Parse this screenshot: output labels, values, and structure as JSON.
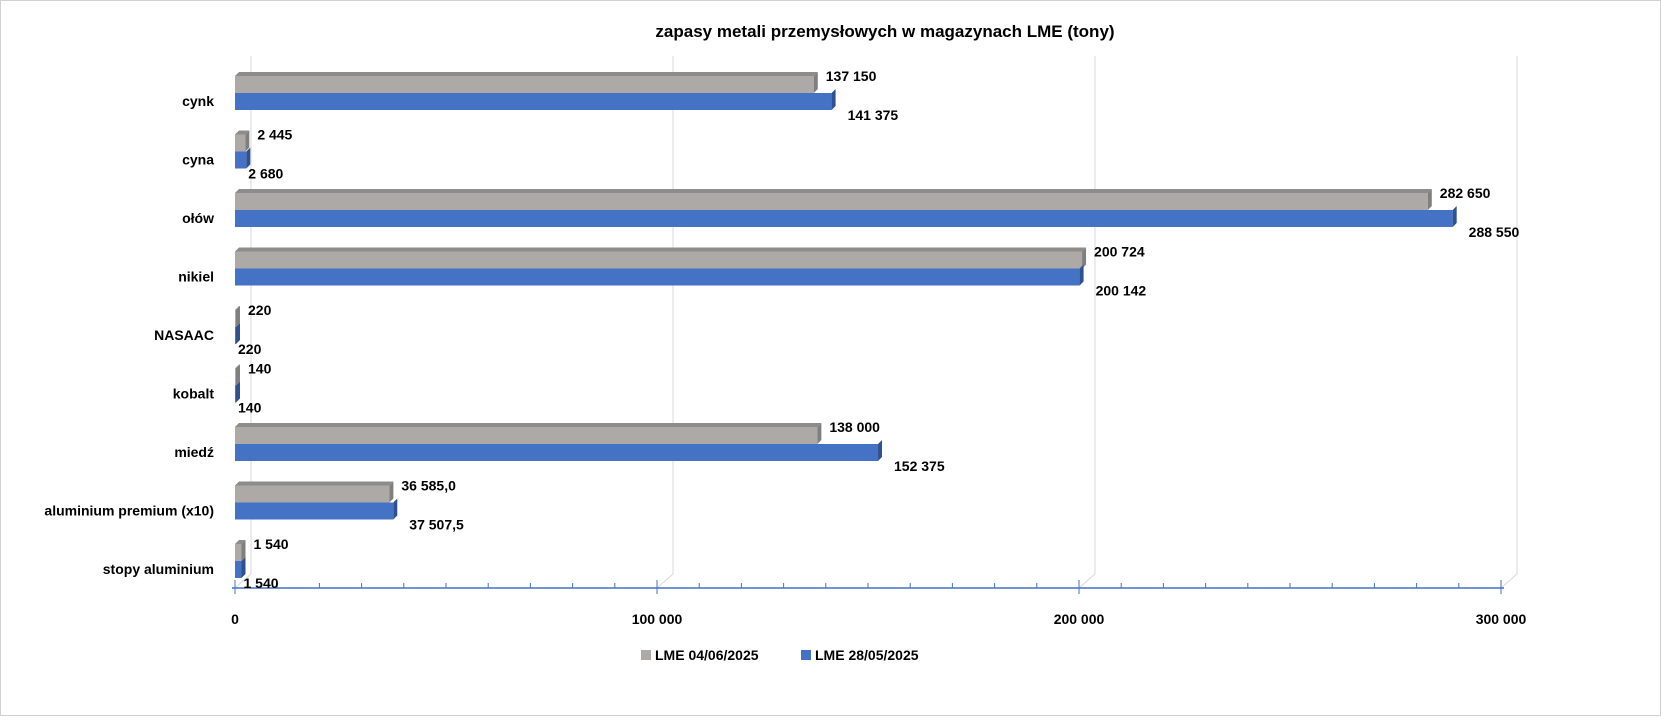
{
  "chart_data": {
    "type": "bar",
    "orientation": "horizontal",
    "style": "3d-clustered",
    "title": "zapasy metali przemysłowych w magazynach LME (tony)",
    "xlabel": "",
    "ylabel": "",
    "xlim": [
      0,
      300000
    ],
    "x_ticks": [
      0,
      100000,
      200000,
      300000
    ],
    "x_tick_labels": [
      "0",
      "100 000",
      "200 000",
      "300 000"
    ],
    "grid": true,
    "legend_position": "bottom",
    "categories": [
      "cynk",
      "cyna",
      "ołów",
      "nikiel",
      "NASAAC",
      "kobalt",
      "miedź",
      "aluminium premium (x10)",
      "stopy aluminium"
    ],
    "series": [
      {
        "name": "LME 04/06/2025",
        "color": "#ADA9A7",
        "values": [
          137150,
          2445,
          282650,
          200724,
          220,
          140,
          138000,
          36585.0,
          1540
        ],
        "labels": [
          "137 150",
          "2 445",
          "282 650",
          "200 724",
          "220",
          "140",
          "138 000",
          "36 585,0",
          "1 540"
        ]
      },
      {
        "name": "LME 28/05/2025",
        "color": "#4472C4",
        "values": [
          141375,
          2680,
          288550,
          200142,
          220,
          140,
          152375,
          37507.5,
          1540
        ],
        "labels": [
          "141 375",
          "2 680",
          "288 550",
          "200 142",
          "220",
          "140",
          "152 375",
          "37 507,5",
          "1 540"
        ]
      }
    ]
  }
}
